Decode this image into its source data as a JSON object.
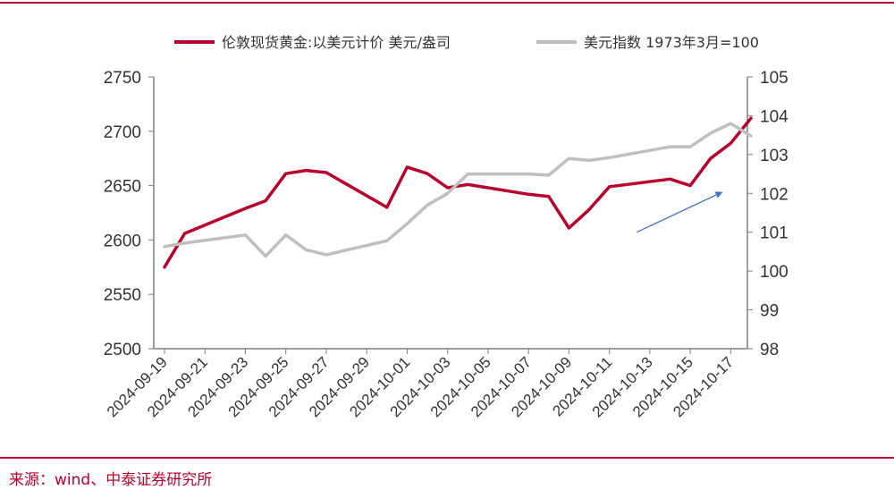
{
  "chart_data": {
    "type": "line",
    "x": [
      "2024-09-19",
      "2024-09-20",
      "2024-09-23",
      "2024-09-24",
      "2024-09-25",
      "2024-09-26",
      "2024-09-27",
      "2024-09-30",
      "2024-10-01",
      "2024-10-02",
      "2024-10-03",
      "2024-10-04",
      "2024-10-07",
      "2024-10-08",
      "2024-10-09",
      "2024-10-10",
      "2024-10-11",
      "2024-10-14",
      "2024-10-15",
      "2024-10-16",
      "2024-10-17",
      "2024-10-18"
    ],
    "x_tick_labels": [
      "2024-09-19",
      "2024-09-21",
      "2024-09-23",
      "2024-09-25",
      "2024-09-27",
      "2024-09-29",
      "2024-10-01",
      "2024-10-03",
      "2024-10-05",
      "2024-10-07",
      "2024-10-09",
      "2024-10-11",
      "2024-10-13",
      "2024-10-15",
      "2024-10-17"
    ],
    "series": [
      {
        "name": "伦敦现货黄金:以美元计价 美元/盎司",
        "axis": "left",
        "color": "#b8002e",
        "x": [
          "2024-09-19",
          "2024-09-20",
          "2024-09-23",
          "2024-09-24",
          "2024-09-25",
          "2024-09-26",
          "2024-09-27",
          "2024-09-30",
          "2024-10-01",
          "2024-10-02",
          "2024-10-03",
          "2024-10-04",
          "2024-10-07",
          "2024-10-08",
          "2024-10-09",
          "2024-10-10",
          "2024-10-11",
          "2024-10-14",
          "2024-10-15",
          "2024-10-16",
          "2024-10-17",
          "2024-10-18"
        ],
        "values": [
          2575,
          2606,
          2629,
          2636,
          2661,
          2664,
          2662,
          2630,
          2667,
          2661,
          2648,
          2651,
          2642,
          2640,
          2611,
          2628,
          2649,
          2656,
          2650,
          2675,
          2689,
          2712
        ]
      },
      {
        "name": "美元指数 1973年3月=100",
        "axis": "right",
        "color": "#bfbfbf",
        "x": [
          "2024-09-19",
          "2024-09-20",
          "2024-09-23",
          "2024-09-24",
          "2024-09-25",
          "2024-09-26",
          "2024-09-27",
          "2024-09-30",
          "2024-10-01",
          "2024-10-02",
          "2024-10-03",
          "2024-10-04",
          "2024-10-07",
          "2024-10-08",
          "2024-10-09",
          "2024-10-10",
          "2024-10-11",
          "2024-10-14",
          "2024-10-15",
          "2024-10-16",
          "2024-10-17",
          "2024-10-18"
        ],
        "values": [
          100.63,
          100.72,
          100.93,
          100.38,
          100.93,
          100.55,
          100.42,
          100.78,
          101.22,
          101.7,
          102.0,
          102.5,
          102.5,
          102.47,
          102.9,
          102.85,
          102.92,
          103.2,
          103.2,
          103.55,
          103.8,
          103.48
        ]
      }
    ],
    "y_left": {
      "ylim": [
        2500,
        2750
      ],
      "ticks": [
        "2500",
        "2550",
        "2600",
        "2650",
        "2700",
        "2750"
      ]
    },
    "y_right": {
      "ylim": [
        98,
        105
      ],
      "ticks": [
        "98",
        "99",
        "100",
        "101",
        "102",
        "103",
        "104",
        "105"
      ]
    },
    "annotation": {
      "type": "arrow",
      "color": "#4472c4",
      "from": {
        "x": "2024-10-12",
        "y_right": 101.0
      },
      "to": {
        "x": "2024-10-16",
        "y_right": 102.0
      }
    },
    "legend_position": "top",
    "grid": false
  },
  "source_text": "来源：wind、中泰证券研究所"
}
